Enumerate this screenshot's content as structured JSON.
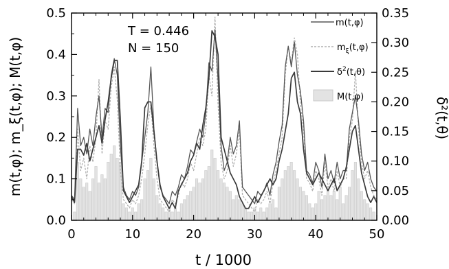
{
  "chart_data": {
    "type": "line",
    "xlabel": "t / 1000",
    "ylabel_left": "m(t,φ); m_ξ(t,φ); M(t,φ)",
    "ylabel_right": "δ²(t,θ)",
    "xlim": [
      0,
      50
    ],
    "ylim_left": [
      0,
      0.5
    ],
    "ylim_right": [
      0,
      0.35
    ],
    "xticks": [
      "0",
      "10",
      "20",
      "30",
      "40",
      "50"
    ],
    "yticks_left": [
      "0.0",
      "0.1",
      "0.2",
      "0.3",
      "0.4",
      "0.5"
    ],
    "yticks_right": [
      "0.00",
      "0.05",
      "0.10",
      "0.15",
      "0.20",
      "0.25",
      "0.30",
      "0.35"
    ],
    "annotations": [
      "T = 0.446",
      "N = 150"
    ],
    "grid": false,
    "legend_position": "top-right",
    "legend": [
      {
        "label_main": "m(t,",
        "label_phi": "φ",
        "label_end": ")",
        "style": "solid-dark"
      },
      {
        "label_main": "m",
        "label_sub": "ξ",
        "label_phi": "(t,φ)",
        "style": "dashed-light"
      },
      {
        "label_main": "δ",
        "label_sup": "2",
        "label_end": "(t,θ)",
        "style": "solid-thick"
      },
      {
        "label_main": "M(t,",
        "label_phi": "φ",
        "label_end": ")",
        "style": "bar"
      }
    ],
    "colors": {
      "m_line": "#555555",
      "mxi_line": "#b0b0b0",
      "delta_line": "#3a3a3a",
      "bar_fill": "#e3e3e3",
      "bar_edge": "#c8c8c8",
      "axis": "#000000"
    },
    "series": [
      {
        "id": "M",
        "axis": "left",
        "x": [
          0.5,
          1,
          1.5,
          2,
          2.5,
          3,
          3.5,
          4,
          4.5,
          5,
          5.5,
          6,
          6.5,
          7,
          7.5,
          8,
          8.5,
          9,
          9.5,
          10,
          10.5,
          11,
          11.5,
          12,
          12.5,
          13,
          13.5,
          14,
          14.5,
          15,
          15.5,
          16,
          16.5,
          17,
          17.5,
          18,
          18.5,
          19,
          19.5,
          20,
          20.5,
          21,
          21.5,
          22,
          22.5,
          23,
          23.5,
          24,
          24.5,
          25,
          25.5,
          26,
          26.5,
          27,
          27.5,
          28,
          28.5,
          29,
          29.5,
          30,
          30.5,
          31,
          31.5,
          32,
          32.5,
          33,
          33.5,
          34,
          34.5,
          35,
          35.5,
          36,
          36.5,
          37,
          37.5,
          38,
          38.5,
          39,
          39.5,
          40,
          40.5,
          41,
          41.5,
          42,
          42.5,
          43,
          43.5,
          44,
          44.5,
          45,
          45.5,
          46,
          46.5,
          47,
          47.5,
          48,
          48.5,
          49,
          49.5
        ],
        "values": [
          0.02,
          0.14,
          0.1,
          0.08,
          0.09,
          0.07,
          0.1,
          0.13,
          0.09,
          0.11,
          0.1,
          0.14,
          0.16,
          0.18,
          0.15,
          0.14,
          0.04,
          0.03,
          0.02,
          0.03,
          0.02,
          0.04,
          0.05,
          0.1,
          0.12,
          0.15,
          0.1,
          0.06,
          0.04,
          0.03,
          0.02,
          0.03,
          0.02,
          0.03,
          0.02,
          0.04,
          0.05,
          0.06,
          0.07,
          0.08,
          0.1,
          0.09,
          0.1,
          0.12,
          0.13,
          0.17,
          0.15,
          0.12,
          0.1,
          0.09,
          0.08,
          0.07,
          0.05,
          0.06,
          0.05,
          0.04,
          0.03,
          0.02,
          0.02,
          0.03,
          0.02,
          0.03,
          0.02,
          0.03,
          0.04,
          0.05,
          0.03,
          0.08,
          0.1,
          0.12,
          0.13,
          0.14,
          0.12,
          0.1,
          0.08,
          0.07,
          0.06,
          0.04,
          0.03,
          0.04,
          0.07,
          0.05,
          0.06,
          0.08,
          0.06,
          0.07,
          0.05,
          0.08,
          0.04,
          0.06,
          0.08,
          0.12,
          0.14,
          0.1,
          0.07,
          0.05,
          0.04,
          0.03,
          0.02
        ]
      },
      {
        "id": "m_xi",
        "axis": "left",
        "x": [
          0,
          0.5,
          1,
          1.5,
          2,
          2.5,
          3,
          3.5,
          4,
          4.5,
          5,
          5.5,
          6,
          6.5,
          7,
          7.5,
          8,
          8.5,
          9,
          9.5,
          10,
          10.5,
          11,
          11.5,
          12,
          12.5,
          13,
          13.5,
          14,
          14.5,
          15,
          15.5,
          16,
          16.5,
          17,
          17.5,
          18,
          18.5,
          19,
          19.5,
          20,
          20.5,
          21,
          21.5,
          22,
          22.5,
          23,
          23.5,
          24,
          24.5,
          25,
          25.5,
          26,
          26.5,
          27,
          27.5,
          28,
          28.5,
          29,
          29.5,
          30,
          30.5,
          31,
          31.5,
          32,
          32.5,
          33,
          33.5,
          34,
          34.5,
          35,
          35.5,
          36,
          36.5,
          37,
          37.5,
          38,
          38.5,
          39,
          39.5,
          40,
          40.5,
          41,
          41.5,
          42,
          42.5,
          43,
          43.5,
          44,
          44.5,
          45,
          45.5,
          46,
          46.5,
          47,
          47.5,
          48,
          48.5,
          49,
          49.5,
          50
        ],
        "values": [
          0.05,
          0.04,
          0.22,
          0.12,
          0.15,
          0.1,
          0.18,
          0.14,
          0.2,
          0.34,
          0.16,
          0.24,
          0.22,
          0.32,
          0.37,
          0.29,
          0.12,
          0.05,
          0.04,
          0.03,
          0.05,
          0.04,
          0.06,
          0.1,
          0.16,
          0.23,
          0.28,
          0.18,
          0.1,
          0.05,
          0.04,
          0.03,
          0.02,
          0.05,
          0.04,
          0.06,
          0.09,
          0.08,
          0.1,
          0.14,
          0.12,
          0.16,
          0.2,
          0.18,
          0.22,
          0.35,
          0.3,
          0.49,
          0.28,
          0.14,
          0.1,
          0.12,
          0.18,
          0.13,
          0.16,
          0.22,
          0.06,
          0.05,
          0.04,
          0.03,
          0.02,
          0.05,
          0.04,
          0.05,
          0.07,
          0.04,
          0.09,
          0.12,
          0.16,
          0.2,
          0.35,
          0.42,
          0.38,
          0.44,
          0.4,
          0.28,
          0.22,
          0.1,
          0.09,
          0.07,
          0.12,
          0.1,
          0.06,
          0.14,
          0.08,
          0.1,
          0.07,
          0.12,
          0.08,
          0.1,
          0.1,
          0.2,
          0.24,
          0.36,
          0.22,
          0.14,
          0.1,
          0.12,
          0.08,
          0.06,
          0.05
        ]
      },
      {
        "id": "m",
        "axis": "left",
        "x": [
          0,
          0.5,
          1,
          1.5,
          2,
          2.5,
          3,
          3.5,
          4,
          4.5,
          5,
          5.5,
          6,
          6.5,
          7,
          7.5,
          8,
          8.5,
          9,
          9.5,
          10,
          10.5,
          11,
          11.5,
          12,
          12.5,
          13,
          13.5,
          14,
          14.5,
          15,
          15.5,
          16,
          16.5,
          17,
          17.5,
          18,
          18.5,
          19,
          19.5,
          20,
          20.5,
          21,
          21.5,
          22,
          22.5,
          23,
          23.5,
          24,
          24.5,
          25,
          25.5,
          26,
          26.5,
          27,
          27.5,
          28,
          28.5,
          29,
          29.5,
          30,
          30.5,
          31,
          31.5,
          32,
          32.5,
          33,
          33.5,
          34,
          34.5,
          35,
          35.5,
          36,
          36.5,
          37,
          37.5,
          38,
          38.5,
          39,
          39.5,
          40,
          40.5,
          41,
          41.5,
          42,
          42.5,
          43,
          43.5,
          44,
          44.5,
          45,
          45.5,
          46,
          46.5,
          47,
          47.5,
          48,
          48.5,
          49,
          49.5,
          50
        ],
        "values": [
          0.06,
          0.05,
          0.27,
          0.18,
          0.2,
          0.16,
          0.22,
          0.18,
          0.25,
          0.3,
          0.2,
          0.27,
          0.26,
          0.35,
          0.39,
          0.35,
          0.18,
          0.08,
          0.06,
          0.05,
          0.07,
          0.06,
          0.08,
          0.14,
          0.2,
          0.26,
          0.37,
          0.22,
          0.14,
          0.08,
          0.06,
          0.05,
          0.04,
          0.07,
          0.06,
          0.08,
          0.11,
          0.1,
          0.13,
          0.17,
          0.16,
          0.19,
          0.22,
          0.2,
          0.26,
          0.38,
          0.36,
          0.46,
          0.34,
          0.18,
          0.12,
          0.14,
          0.2,
          0.16,
          0.18,
          0.24,
          0.08,
          0.07,
          0.06,
          0.05,
          0.04,
          0.07,
          0.06,
          0.07,
          0.09,
          0.06,
          0.11,
          0.14,
          0.19,
          0.23,
          0.37,
          0.42,
          0.37,
          0.43,
          0.35,
          0.31,
          0.24,
          0.12,
          0.11,
          0.09,
          0.14,
          0.12,
          0.08,
          0.16,
          0.1,
          0.12,
          0.09,
          0.14,
          0.1,
          0.12,
          0.12,
          0.22,
          0.26,
          0.3,
          0.24,
          0.16,
          0.12,
          0.14,
          0.1,
          0.08,
          0.07
        ]
      },
      {
        "id": "delta2",
        "axis": "right",
        "x": [
          0,
          0.5,
          1,
          1.5,
          2,
          2.5,
          3,
          3.5,
          4,
          4.5,
          5,
          5.5,
          6,
          6.5,
          7,
          7.5,
          8,
          8.5,
          9,
          9.5,
          10,
          10.5,
          11,
          11.5,
          12,
          12.5,
          13,
          13.5,
          14,
          14.5,
          15,
          15.5,
          16,
          16.5,
          17,
          17.5,
          18,
          18.5,
          19,
          19.5,
          20,
          20.5,
          21,
          21.5,
          22,
          22.5,
          23,
          23.5,
          24,
          24.5,
          25,
          25.5,
          26,
          26.5,
          27,
          27.5,
          28,
          28.5,
          29,
          29.5,
          30,
          30.5,
          31,
          31.5,
          32,
          32.5,
          33,
          33.5,
          34,
          34.5,
          35,
          35.5,
          36,
          36.5,
          37,
          37.5,
          38,
          38.5,
          39,
          39.5,
          40,
          40.5,
          41,
          41.5,
          42,
          42.5,
          43,
          43.5,
          44,
          44.5,
          45,
          45.5,
          46,
          46.5,
          47,
          47.5,
          48,
          48.5,
          49,
          49.5,
          50
        ],
        "values": [
          0.04,
          0.03,
          0.12,
          0.12,
          0.11,
          0.13,
          0.1,
          0.12,
          0.14,
          0.16,
          0.13,
          0.17,
          0.2,
          0.24,
          0.27,
          0.27,
          0.17,
          0.05,
          0.04,
          0.03,
          0.04,
          0.05,
          0.06,
          0.1,
          0.19,
          0.2,
          0.2,
          0.15,
          0.1,
          0.06,
          0.04,
          0.03,
          0.02,
          0.03,
          0.02,
          0.05,
          0.06,
          0.07,
          0.08,
          0.1,
          0.11,
          0.13,
          0.12,
          0.16,
          0.19,
          0.24,
          0.32,
          0.31,
          0.28,
          0.14,
          0.12,
          0.1,
          0.08,
          0.07,
          0.06,
          0.04,
          0.03,
          0.02,
          0.02,
          0.03,
          0.04,
          0.03,
          0.04,
          0.05,
          0.06,
          0.07,
          0.06,
          0.07,
          0.1,
          0.12,
          0.15,
          0.18,
          0.24,
          0.25,
          0.2,
          0.18,
          0.12,
          0.08,
          0.07,
          0.06,
          0.07,
          0.08,
          0.07,
          0.06,
          0.05,
          0.06,
          0.07,
          0.05,
          0.06,
          0.07,
          0.09,
          0.12,
          0.15,
          0.16,
          0.12,
          0.08,
          0.06,
          0.04,
          0.03,
          0.04,
          0.03
        ]
      }
    ]
  }
}
